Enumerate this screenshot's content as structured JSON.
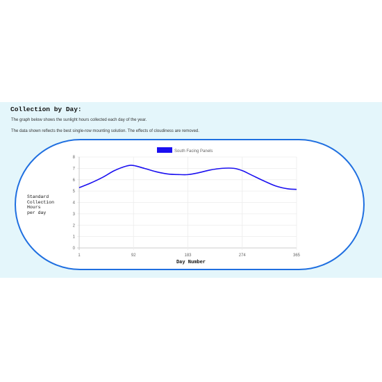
{
  "section": {
    "heading": "Collection by Day:",
    "description_1": "The graph below shows the sunlight hours collected each day of the year.",
    "description_2": "The data shown reflects the best single-row mounting solution. The effects of cloudiness are removed."
  },
  "chart_data": {
    "type": "line",
    "xlabel": "Day Number",
    "ylabel_lines": [
      "Standard",
      "Collection",
      "Hours",
      "per day"
    ],
    "x_ticks": [
      "1",
      "92",
      "183",
      "274",
      "365"
    ],
    "y_ticks": [
      "0",
      "1",
      "2",
      "3",
      "4",
      "5",
      "6",
      "7",
      "8"
    ],
    "xlim": [
      1,
      365
    ],
    "ylim": [
      0,
      8
    ],
    "grid": true,
    "legend": "top-center",
    "series": [
      {
        "name": "South Facing Panels",
        "color": "#1a0ff0",
        "x": [
          1,
          20,
          40,
          60,
          80,
          92,
          110,
          130,
          150,
          170,
          183,
          200,
          220,
          240,
          260,
          274,
          290,
          310,
          330,
          350,
          365
        ],
        "y": [
          5.3,
          5.7,
          6.2,
          6.8,
          7.2,
          7.25,
          7.0,
          6.7,
          6.5,
          6.45,
          6.45,
          6.6,
          6.85,
          7.0,
          7.0,
          6.8,
          6.4,
          5.9,
          5.45,
          5.2,
          5.15
        ]
      }
    ]
  }
}
